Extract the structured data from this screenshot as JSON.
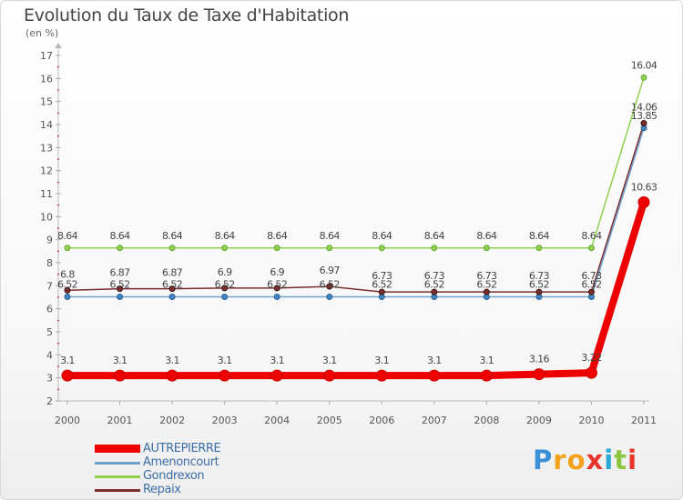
{
  "header": {
    "title": "Evolution du Taux de Taxe d'Habitation",
    "subtitle": "(en %)"
  },
  "chart_data": {
    "type": "line",
    "title": "Evolution du Taux de Taxe d'Habitation",
    "ylabel": "(en %)",
    "xlabel": "",
    "categories": [
      "2000",
      "2001",
      "2002",
      "2003",
      "2004",
      "2005",
      "2006",
      "2007",
      "2008",
      "2009",
      "2010",
      "2011"
    ],
    "ylim": [
      2,
      17
    ],
    "yticks": [
      "2",
      "3",
      "4",
      "5",
      "6",
      "7",
      "8",
      "9",
      "10",
      "11",
      "12",
      "13",
      "14",
      "15",
      "16",
      "17"
    ],
    "grid": false,
    "legend": "bottom-left",
    "series": [
      {
        "name": "Gondrexon",
        "color": "#8fd14f",
        "values": [
          8.64,
          8.64,
          8.64,
          8.64,
          8.64,
          8.64,
          8.64,
          8.64,
          8.64,
          8.64,
          8.64,
          16.04
        ],
        "labels": [
          "8.64",
          "8.64",
          "8.64",
          "8.64",
          "8.64",
          "8.64",
          "8.64",
          "8.64",
          "8.64",
          "8.64",
          "8.64",
          "16.04"
        ]
      },
      {
        "name": "Amenoncourt",
        "color": "#6fa0cf",
        "values": [
          6.52,
          6.52,
          6.52,
          6.52,
          6.52,
          6.52,
          6.52,
          6.52,
          6.52,
          6.52,
          6.52,
          13.85
        ],
        "labels": [
          "6.52",
          "6.52",
          "6.52",
          "6.52",
          "6.52",
          "6.52",
          "6.52",
          "6.52",
          "6.52",
          "6.52",
          "6.52",
          "13.85"
        ]
      },
      {
        "name": "Repaix",
        "color": "#7a2e2e",
        "values": [
          6.8,
          6.87,
          6.87,
          6.9,
          6.9,
          6.97,
          6.73,
          6.73,
          6.73,
          6.73,
          6.73,
          14.06
        ],
        "labels": [
          "6.8",
          "6.87",
          "6.87",
          "6.9",
          "6.9",
          "6.97",
          "6.73",
          "6.73",
          "6.73",
          "6.73",
          "6.73",
          "14.06"
        ]
      },
      {
        "name": "AUTREPIERRE",
        "color": "#ee0000",
        "values": [
          3.1,
          3.1,
          3.1,
          3.1,
          3.1,
          3.1,
          3.1,
          3.1,
          3.1,
          3.16,
          3.22,
          10.63
        ],
        "labels": [
          "3.1",
          "3.1",
          "3.1",
          "3.1",
          "3.1",
          "3.1",
          "3.1",
          "3.1",
          "3.1",
          "3.16",
          "3.22",
          "10.63"
        ]
      }
    ]
  },
  "legend": {
    "items": [
      {
        "label": "AUTREPIERRE",
        "color": "#ee0000"
      },
      {
        "label": "Amenoncourt",
        "color": "#6fa0cf"
      },
      {
        "label": "Gondrexon",
        "color": "#8fd14f"
      },
      {
        "label": "Repaix",
        "color": "#7a2e2e"
      }
    ]
  },
  "logo": {
    "text": "Proxiti",
    "letters": [
      {
        "ch": "P",
        "color": "#3a8fd8"
      },
      {
        "ch": "r",
        "color": "#f2a21c"
      },
      {
        "ch": "o",
        "color": "#f2a21c"
      },
      {
        "ch": "x",
        "color": "#e8342a"
      },
      {
        "ch": "i",
        "color": "#2aa9d8"
      },
      {
        "ch": "t",
        "color": "#8cc63f"
      },
      {
        "ch": "i",
        "color": "#e8342a"
      }
    ]
  }
}
